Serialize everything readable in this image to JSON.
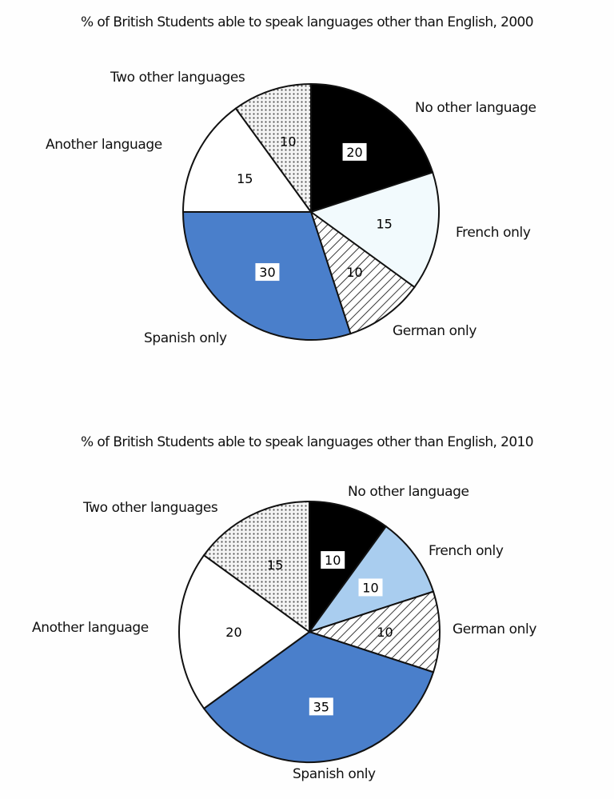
{
  "chart_data": [
    {
      "type": "pie",
      "title": "% of British Students able to speak languages other than English, 2000",
      "categories": [
        "No other language",
        "French only",
        "German only",
        "Spanish only",
        "Another language",
        "Two other languages"
      ],
      "values": [
        20,
        15,
        10,
        30,
        15,
        10
      ],
      "colors": [
        "#000000",
        "#f2fafd",
        "hatch-diagonal",
        "#4a7fcb",
        "#ffffff",
        "dotted"
      ],
      "start_angle": "12 o'clock",
      "direction": "clockwise"
    },
    {
      "type": "pie",
      "title": "% of British Students able to speak languages other than English, 2010",
      "categories": [
        "No other language",
        "French only",
        "German only",
        "Spanish only",
        "Another language",
        "Two other languages"
      ],
      "values": [
        10,
        10,
        10,
        35,
        20,
        15
      ],
      "colors": [
        "#000000",
        "#a9cdef",
        "hatch-diagonal",
        "#4a7fcb",
        "#ffffff",
        "dotted"
      ],
      "start_angle": "12 o'clock",
      "direction": "clockwise"
    }
  ],
  "titles": {
    "t2000": "% of British Students able to speak languages other than English, 2000",
    "t2010": "% of British Students able to speak languages other than English, 2010"
  },
  "labels2000": {
    "no_other": "No other language",
    "french": "French only",
    "german": "German only",
    "spanish": "Spanish only",
    "another": "Another language",
    "two_other": "Two other languages"
  },
  "labels2010": {
    "no_other": "No other language",
    "french": "French only",
    "german": "German only",
    "spanish": "Spanish only",
    "another": "Another language",
    "two_other": "Two other languages"
  },
  "values2000": {
    "no_other": "20",
    "french": "15",
    "german": "10",
    "spanish": "30",
    "another": "15",
    "two_other": "10"
  },
  "values2010": {
    "no_other": "10",
    "french": "10",
    "german": "10",
    "spanish": "35",
    "another": "20",
    "two_other": "15"
  }
}
